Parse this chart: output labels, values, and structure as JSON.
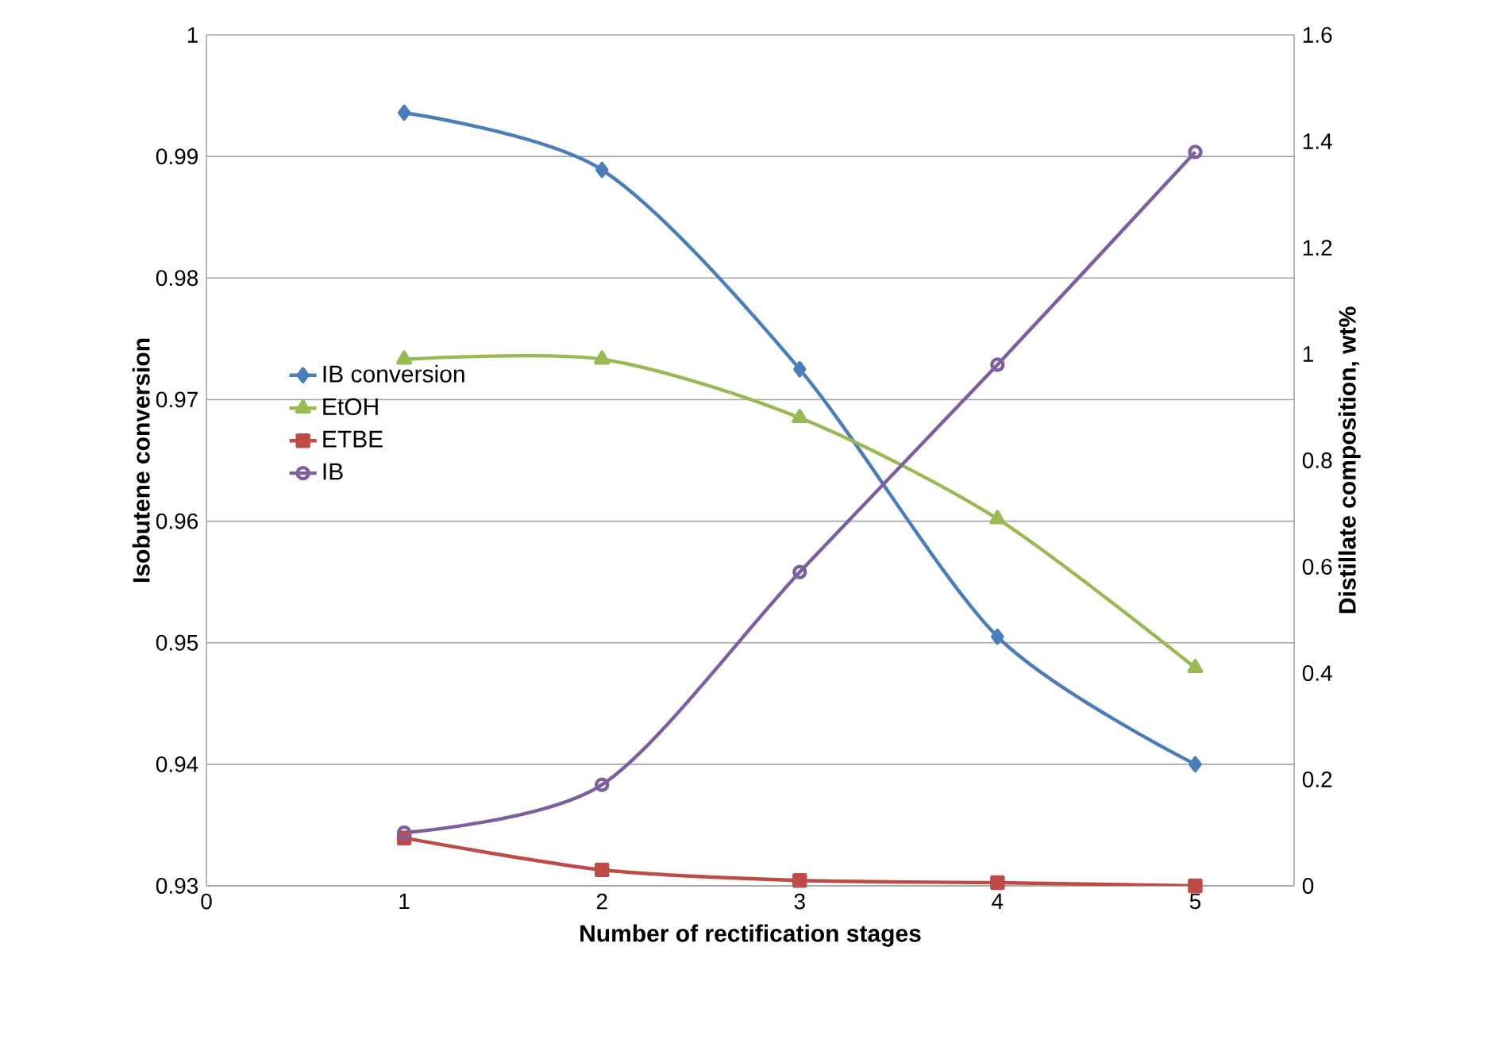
{
  "chart_data": {
    "type": "line",
    "xlabel": "Number of rectification stages",
    "ylabel": "Isobutene conversion",
    "y2label": "Distillate composition, wt%",
    "x": [
      1,
      2,
      3,
      4,
      5
    ],
    "series": [
      {
        "name": "IB conversion",
        "color": "#4a7ebb",
        "marker": "diamond",
        "values": [
          0.9936,
          0.9889,
          0.9725,
          0.9505,
          0.94
        ]
      },
      {
        "name": "EtOH",
        "color": "#98b954",
        "marker": "triangle",
        "axis": "y2",
        "values": [
          0.99,
          0.99,
          0.88,
          0.69,
          0.41
        ]
      },
      {
        "name": "ETBE",
        "color": "#be4b48",
        "marker": "square",
        "axis": "y2",
        "values": [
          0.09,
          0.03,
          0.01,
          0.006,
          0.0
        ]
      },
      {
        "name": "IB",
        "color": "#7d5fa0",
        "marker": "circle",
        "axis": "y2",
        "values": [
          0.1,
          0.19,
          0.59,
          0.98,
          1.38
        ]
      }
    ],
    "xlim": [
      0,
      5.5
    ],
    "xticks": [
      0,
      1,
      2,
      3,
      4,
      5
    ],
    "ylim": [
      0.93,
      1
    ],
    "yticks": [
      0.93,
      0.94,
      0.95,
      0.96,
      0.97,
      0.98,
      0.99,
      1
    ],
    "y2lim": [
      0,
      1.6
    ],
    "y2ticks": [
      0,
      0.2,
      0.4,
      0.6,
      0.8,
      1,
      1.2,
      1.4,
      1.6
    ],
    "grid": "y",
    "legend": "left",
    "line_style": "solid"
  }
}
